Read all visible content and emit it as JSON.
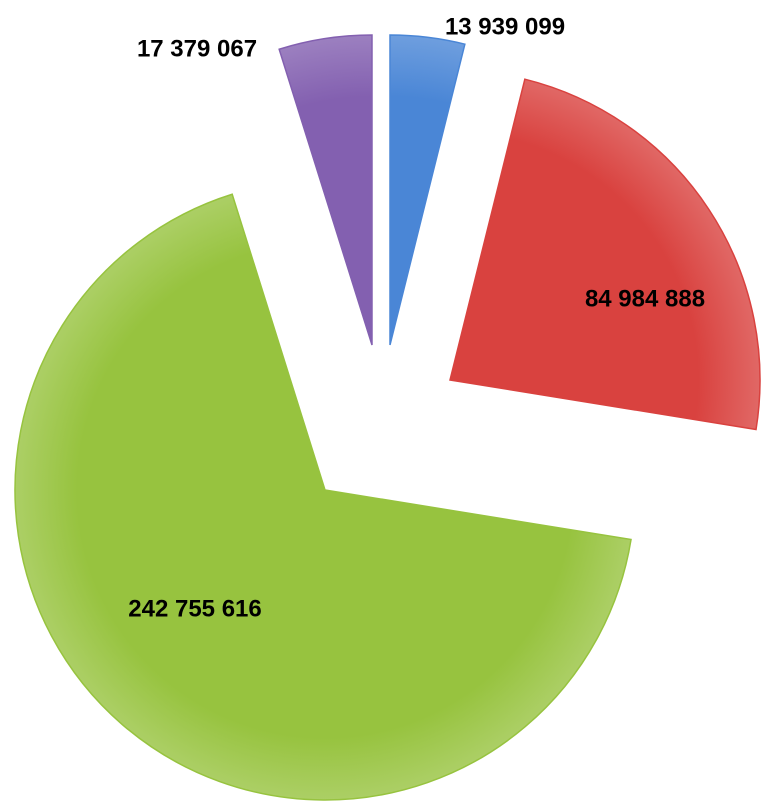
{
  "chart_data": {
    "type": "pie",
    "categories": [
      null,
      null,
      null,
      null
    ],
    "values": [
      13939099,
      84984888,
      242755616,
      17379067
    ],
    "value_labels": [
      "13 939 099",
      "84 984 888",
      "242 755 616",
      "17 379 067"
    ],
    "colors": [
      "#4a86d6",
      "#d9423f",
      "#97c33f",
      "#8360b0"
    ]
  }
}
